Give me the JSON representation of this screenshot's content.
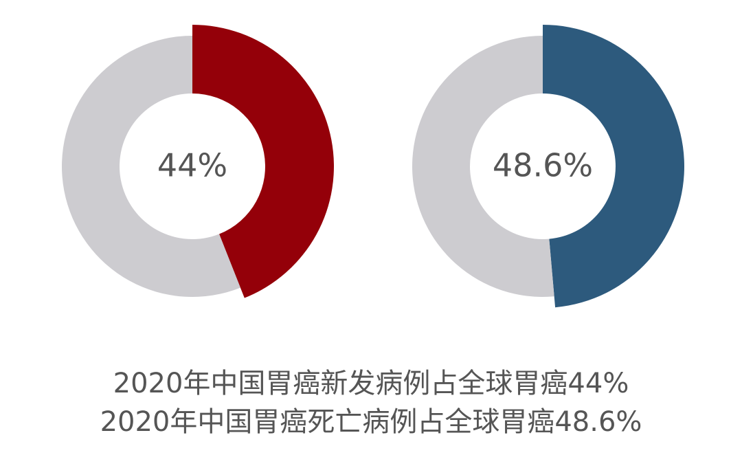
{
  "chart_data": [
    {
      "type": "donut",
      "values": [
        44,
        56
      ],
      "value_labels": [
        "44%",
        null
      ],
      "colors": [
        "#940009",
        "#cdccd0"
      ],
      "caption": "2020年中国胃癌新发病例占全球胃癌44%"
    },
    {
      "type": "donut",
      "values": [
        48.6,
        51.4
      ],
      "value_labels": [
        "48.6%",
        null
      ],
      "colors": [
        "#2d5a7d",
        "#cdccd0"
      ],
      "caption": "2020年中国胃癌死亡病例占全球胃癌48.6%"
    }
  ]
}
